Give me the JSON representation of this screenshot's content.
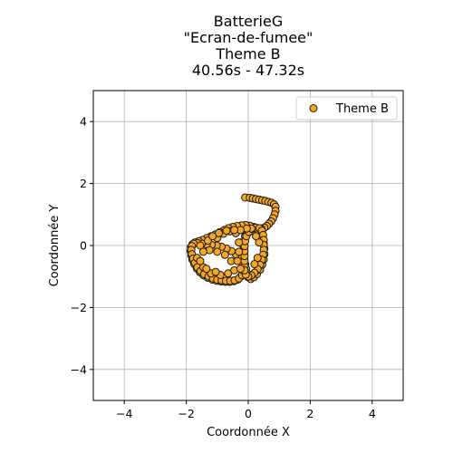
{
  "chart_data": {
    "type": "scatter",
    "title_lines": [
      "BatterieG",
      "\"Ecran-de-fumee\"",
      "Theme B",
      "40.56s - 47.32s"
    ],
    "xlabel": "Coordonnée X",
    "ylabel": "Coordonnée Y",
    "xlim": [
      -5,
      5
    ],
    "ylim": [
      -5,
      5
    ],
    "xticks": [
      -4,
      -2,
      0,
      2,
      4
    ],
    "yticks": [
      -4,
      -2,
      0,
      2,
      4
    ],
    "xtick_labels": [
      "−4",
      "−2",
      "0",
      "2",
      "4"
    ],
    "ytick_labels": [
      "−4",
      "−2",
      "0",
      "2",
      "4"
    ],
    "grid": true,
    "legend_position": "top-right",
    "series": [
      {
        "name": "Theme B",
        "color": "#f5a623",
        "edge_color": "#1a1a1a",
        "points": [
          [
            -0.1,
            1.55
          ],
          [
            0.05,
            1.54
          ],
          [
            0.15,
            1.52
          ],
          [
            0.25,
            1.5
          ],
          [
            0.35,
            1.48
          ],
          [
            0.45,
            1.46
          ],
          [
            0.55,
            1.44
          ],
          [
            0.65,
            1.41
          ],
          [
            0.75,
            1.38
          ],
          [
            0.83,
            1.33
          ],
          [
            0.88,
            1.25
          ],
          [
            0.88,
            1.12
          ],
          [
            0.85,
            1.0
          ],
          [
            0.8,
            0.88
          ],
          [
            0.74,
            0.78
          ],
          [
            0.67,
            0.7
          ],
          [
            0.6,
            0.63
          ],
          [
            0.52,
            0.58
          ],
          [
            0.42,
            0.55
          ],
          [
            0.32,
            0.52
          ],
          [
            0.22,
            0.5
          ],
          [
            0.12,
            0.48
          ],
          [
            0.0,
            0.42
          ],
          [
            -0.1,
            0.3
          ],
          [
            -0.15,
            0.15
          ],
          [
            -0.16,
            0.0
          ],
          [
            -0.16,
            -0.15
          ],
          [
            -0.15,
            -0.3
          ],
          [
            -0.13,
            -0.45
          ],
          [
            -0.1,
            -0.6
          ],
          [
            -0.07,
            -0.75
          ],
          [
            -0.04,
            -0.9
          ],
          [
            0.0,
            -1.02
          ],
          [
            0.08,
            -1.08
          ],
          [
            0.18,
            -1.02
          ],
          [
            0.28,
            -0.92
          ],
          [
            0.38,
            -0.78
          ],
          [
            0.45,
            -0.62
          ],
          [
            0.5,
            -0.45
          ],
          [
            0.52,
            -0.28
          ],
          [
            0.52,
            -0.1
          ],
          [
            0.5,
            0.08
          ],
          [
            0.45,
            0.25
          ],
          [
            0.38,
            0.4
          ],
          [
            0.3,
            0.52
          ],
          [
            0.18,
            0.6
          ],
          [
            0.05,
            0.64
          ],
          [
            -0.08,
            0.66
          ],
          [
            -0.22,
            0.65
          ],
          [
            -0.36,
            0.63
          ],
          [
            -0.5,
            0.6
          ],
          [
            -0.64,
            0.56
          ],
          [
            -0.78,
            0.5
          ],
          [
            -0.92,
            0.43
          ],
          [
            -1.06,
            0.36
          ],
          [
            -1.2,
            0.3
          ],
          [
            -1.34,
            0.24
          ],
          [
            -1.48,
            0.18
          ],
          [
            -1.6,
            0.14
          ],
          [
            -1.72,
            0.1
          ],
          [
            -1.8,
            0.04
          ],
          [
            -1.85,
            -0.05
          ],
          [
            -1.86,
            -0.18
          ],
          [
            -1.84,
            -0.32
          ],
          [
            -1.8,
            -0.46
          ],
          [
            -1.74,
            -0.6
          ],
          [
            -1.66,
            -0.74
          ],
          [
            -1.56,
            -0.86
          ],
          [
            -1.44,
            -0.96
          ],
          [
            -1.3,
            -1.04
          ],
          [
            -1.16,
            -1.1
          ],
          [
            -1.02,
            -1.14
          ],
          [
            -0.88,
            -1.16
          ],
          [
            -0.74,
            -1.17
          ],
          [
            -0.6,
            -1.17
          ],
          [
            -0.46,
            -1.15
          ],
          [
            -0.34,
            -1.1
          ],
          [
            -0.24,
            -1.0
          ],
          [
            -0.18,
            -0.86
          ],
          [
            -0.16,
            -0.7
          ],
          [
            -0.2,
            -0.55
          ],
          [
            -0.28,
            -0.4
          ],
          [
            -0.4,
            -0.28
          ],
          [
            -0.54,
            -0.18
          ],
          [
            -0.7,
            -0.1
          ],
          [
            -0.86,
            -0.04
          ],
          [
            -1.02,
            0.0
          ],
          [
            -1.18,
            0.02
          ],
          [
            -1.34,
            0.04
          ],
          [
            -1.5,
            0.06
          ],
          [
            -1.64,
            0.08
          ],
          [
            -1.76,
            0.06
          ],
          [
            -1.82,
            -0.02
          ],
          [
            -1.84,
            -0.14
          ],
          [
            -1.82,
            -0.28
          ],
          [
            -1.78,
            -0.42
          ],
          [
            -1.72,
            -0.56
          ],
          [
            -1.64,
            -0.7
          ],
          [
            -1.54,
            -0.82
          ],
          [
            -1.42,
            -0.92
          ],
          [
            -1.28,
            -1.0
          ],
          [
            -1.14,
            -1.06
          ],
          [
            -1.0,
            -1.1
          ],
          [
            -0.86,
            -1.12
          ],
          [
            -0.72,
            -1.14
          ],
          [
            -0.58,
            -1.14
          ],
          [
            -0.44,
            -1.12
          ],
          [
            -0.3,
            -1.06
          ],
          [
            -0.2,
            -0.96
          ],
          [
            -0.14,
            -0.82
          ],
          [
            -0.12,
            -0.66
          ],
          [
            -0.12,
            -0.5
          ],
          [
            -0.12,
            -0.34
          ],
          [
            -0.12,
            -0.18
          ],
          [
            -0.12,
            -0.02
          ],
          [
            -0.1,
            0.14
          ],
          [
            -0.06,
            0.3
          ],
          [
            0.02,
            0.44
          ],
          [
            0.12,
            0.54
          ],
          [
            0.24,
            0.58
          ],
          [
            0.36,
            0.56
          ],
          [
            0.44,
            0.48
          ],
          [
            0.48,
            0.34
          ],
          [
            0.5,
            0.18
          ],
          [
            0.5,
            0.02
          ],
          [
            0.5,
            -0.14
          ],
          [
            0.48,
            -0.3
          ],
          [
            0.44,
            -0.46
          ],
          [
            0.38,
            -0.62
          ],
          [
            0.3,
            -0.76
          ],
          [
            0.2,
            -0.88
          ],
          [
            0.1,
            -0.96
          ],
          [
            0.0,
            -1.0
          ],
          [
            -0.08,
            -0.94
          ],
          [
            -0.12,
            -0.8
          ],
          [
            -0.4,
            0.4
          ],
          [
            -0.6,
            0.46
          ],
          [
            -0.8,
            0.38
          ],
          [
            -1.0,
            0.24
          ],
          [
            -1.3,
            0.16
          ],
          [
            -1.55,
            0.0
          ],
          [
            -1.65,
            -0.4
          ],
          [
            -1.45,
            -0.7
          ],
          [
            -1.2,
            -0.9
          ],
          [
            -0.9,
            -0.95
          ],
          [
            -0.65,
            -0.9
          ],
          [
            -0.45,
            -0.8
          ],
          [
            -0.55,
            -0.5
          ],
          [
            -0.75,
            -0.3
          ],
          [
            -1.0,
            -0.2
          ],
          [
            -1.25,
            -0.15
          ],
          [
            -1.45,
            -0.2
          ],
          [
            -1.55,
            -0.5
          ],
          [
            -1.35,
            -0.75
          ],
          [
            -1.05,
            -0.85
          ],
          [
            -0.3,
            0.1
          ],
          [
            -0.3,
            -0.2
          ],
          [
            -0.35,
            -0.5
          ],
          [
            -0.25,
            -0.75
          ],
          [
            0.25,
            0.3
          ],
          [
            0.35,
            0.1
          ],
          [
            0.3,
            -0.4
          ],
          [
            0.2,
            -0.6
          ],
          [
            0.1,
            0.55
          ],
          [
            -0.05,
            0.55
          ],
          [
            -0.25,
            0.5
          ],
          [
            -0.45,
            0.5
          ],
          [
            -0.7,
            0.48
          ],
          [
            -0.95,
            0.4
          ],
          [
            -1.15,
            0.3
          ]
        ]
      }
    ]
  }
}
